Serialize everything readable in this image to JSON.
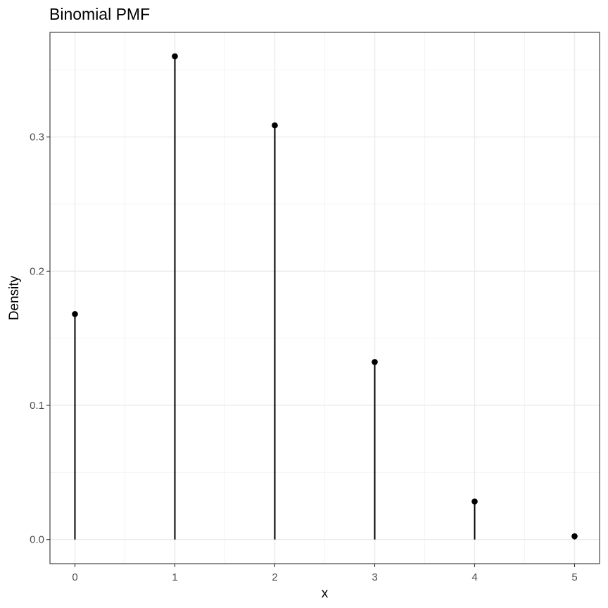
{
  "chart_data": {
    "type": "lollipop",
    "title": "Binomial PMF",
    "xlabel": "x",
    "ylabel": "Density",
    "x": [
      0,
      1,
      2,
      3,
      4,
      5
    ],
    "y": [
      0.16807,
      0.36015,
      0.3087,
      0.1323,
      0.02835,
      0.00243
    ],
    "xlim": [
      -0.25,
      5.25
    ],
    "ylim": [
      -0.018,
      0.378
    ],
    "x_ticks": [
      0,
      1,
      2,
      3,
      4,
      5
    ],
    "x_tick_labels": [
      "0",
      "1",
      "2",
      "3",
      "4",
      "5"
    ],
    "y_ticks": [
      0.0,
      0.1,
      0.2,
      0.3
    ],
    "y_tick_labels": [
      "0.0",
      "0.1",
      "0.2",
      "0.3"
    ],
    "x_minor_ticks": [
      0.5,
      1.5,
      2.5,
      3.5,
      4.5
    ],
    "y_minor_ticks": [
      0.05,
      0.15,
      0.25,
      0.35
    ],
    "grid": true,
    "legend": "none",
    "colors": {
      "stem": "#000000",
      "point": "#000000",
      "grid_major": "#ebebeb",
      "grid_minor": "#f2f2f2",
      "panel_border": "#333333",
      "tick_label": "#4d4d4d"
    }
  }
}
